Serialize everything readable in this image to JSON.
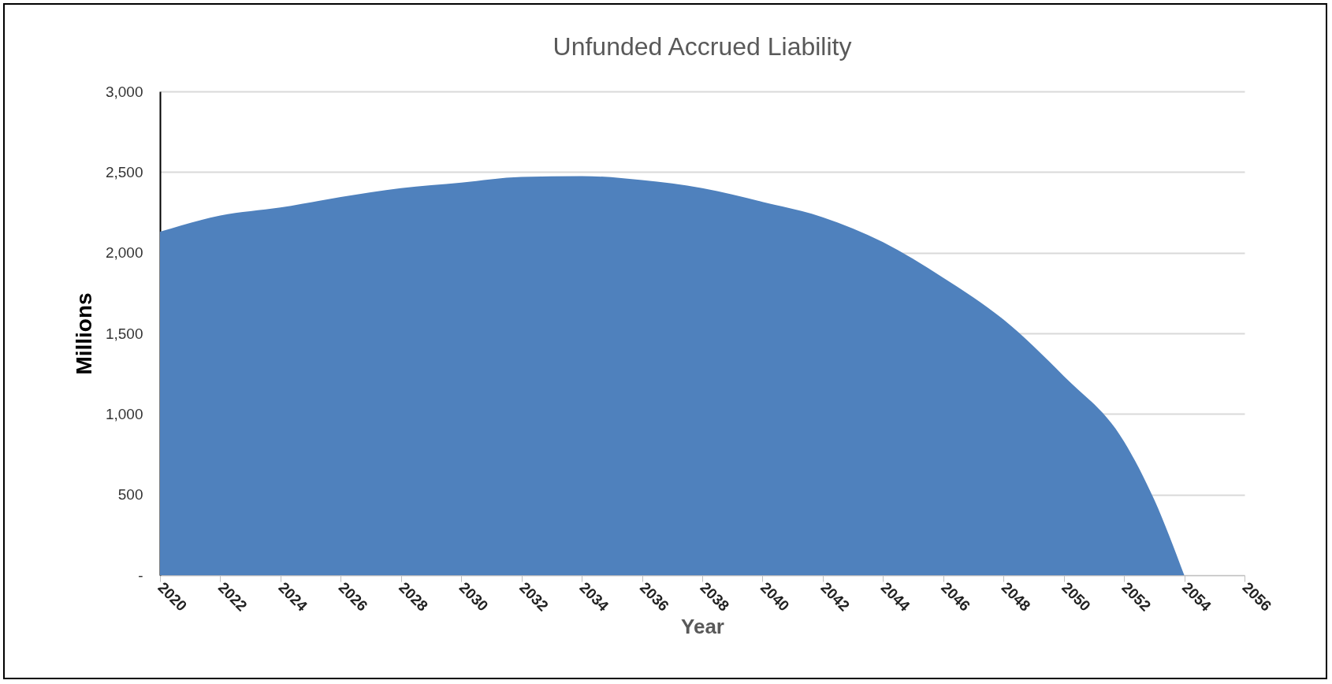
{
  "chart_data": {
    "type": "area",
    "title": "Unfunded Accrued Liability",
    "xlabel": "Year",
    "ylabel": "Millions",
    "x": [
      2020,
      2022,
      2024,
      2026,
      2028,
      2030,
      2032,
      2034,
      2036,
      2038,
      2040,
      2042,
      2044,
      2046,
      2048,
      2050,
      2052,
      2053,
      2054
    ],
    "series": [
      {
        "color": "#4f81bd",
        "values": [
          2130,
          2230,
          2280,
          2345,
          2400,
          2435,
          2470,
          2475,
          2450,
          2400,
          2315,
          2220,
          2065,
          1845,
          1585,
          1235,
          830,
          470,
          0
        ]
      }
    ],
    "xlim": [
      2020,
      2056
    ],
    "xticks": [
      2020,
      2022,
      2024,
      2026,
      2028,
      2030,
      2032,
      2034,
      2036,
      2038,
      2040,
      2042,
      2044,
      2046,
      2048,
      2050,
      2052,
      2054,
      2056
    ],
    "ylim": [
      0,
      3000
    ],
    "yticks": [
      {
        "value": 0,
        "label": "-"
      },
      {
        "value": 500,
        "label": "500"
      },
      {
        "value": 1000,
        "label": "1,000"
      },
      {
        "value": 1500,
        "label": "1,500"
      },
      {
        "value": 2000,
        "label": "2,000"
      },
      {
        "value": 2500,
        "label": "2,500"
      },
      {
        "value": 3000,
        "label": "3,000"
      }
    ],
    "grid": "y"
  }
}
